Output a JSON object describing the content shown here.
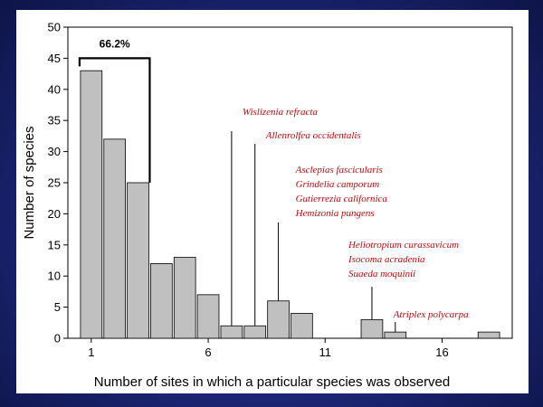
{
  "chart_data": {
    "type": "bar",
    "x": [
      1,
      2,
      3,
      4,
      5,
      6,
      7,
      8,
      9,
      10,
      11,
      12,
      13,
      14,
      15,
      16,
      17,
      18
    ],
    "values": [
      43,
      32,
      25,
      12,
      13,
      7,
      2,
      2,
      6,
      4,
      0,
      0,
      3,
      1,
      0,
      0,
      0,
      1
    ],
    "title": "",
    "xlabel": "Number of sites in which a particular species was observed",
    "ylabel": "Number of species",
    "xticks": [
      1,
      6,
      11,
      16
    ],
    "yticks": [
      0,
      5,
      10,
      15,
      20,
      25,
      30,
      35,
      40,
      45,
      50
    ],
    "xlim": [
      0,
      19
    ],
    "ylim": [
      0,
      50
    ],
    "bar_color": "#c0c0c0",
    "annotation_color": "#b01010",
    "bracket": {
      "label": "66.2%",
      "from_x": 1,
      "to_x": 3,
      "level": 45
    },
    "annotations": [
      {
        "x": 7,
        "lines": [
          "Wislizenia refracta"
        ]
      },
      {
        "x": 8,
        "lines": [
          "Allenrolfea occidentalis"
        ]
      },
      {
        "x": 9,
        "lines": [
          "Asclepias fascicularis",
          "Grindelia camporum",
          "Gutierrezia californica",
          "Hemizonia pungens"
        ]
      },
      {
        "x": 13,
        "lines": [
          "Heliotropium curassavicum",
          "Isocoma acradenia",
          "Suaeda moquinii"
        ]
      },
      {
        "x": 14,
        "lines": [
          "Atriplex polycarpa"
        ]
      }
    ]
  }
}
